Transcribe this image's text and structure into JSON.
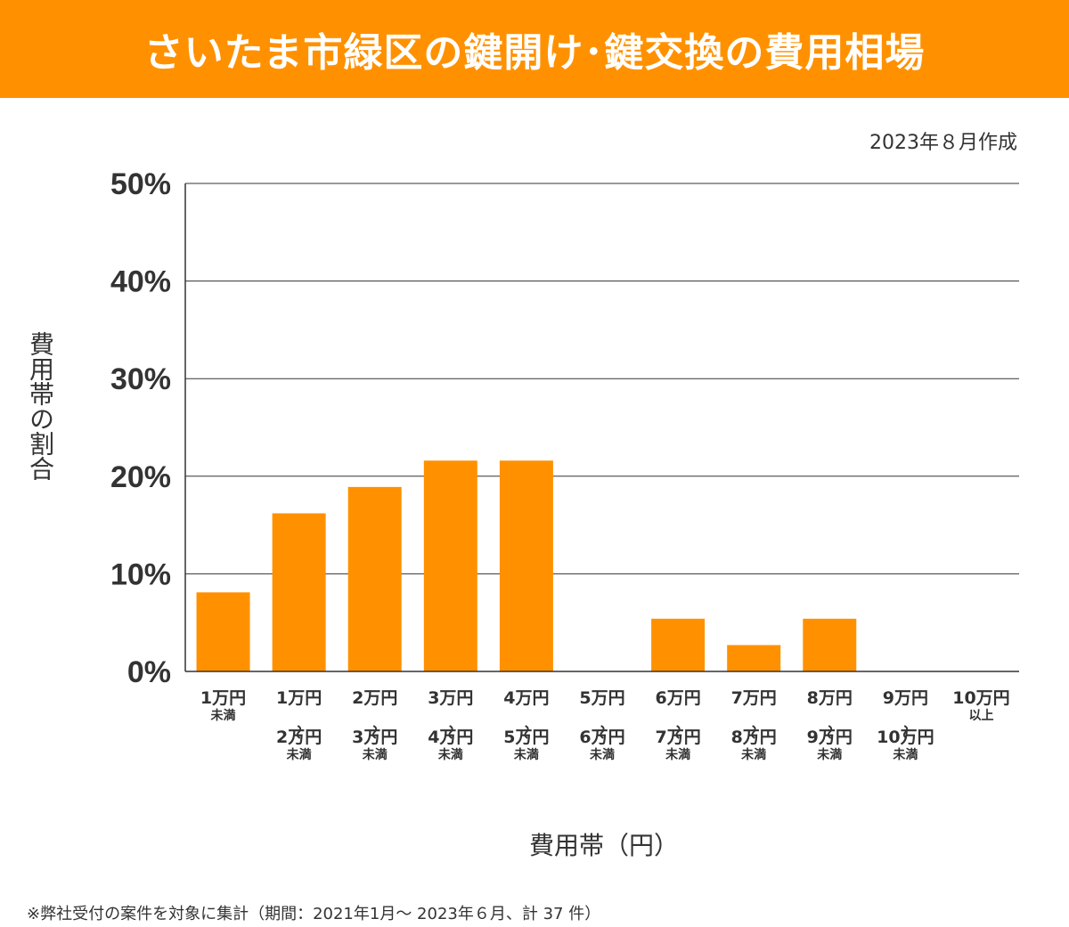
{
  "header": {
    "title": "さいたま市緑区の鍵開け･鍵交換の費用相場",
    "created": "2023年８月作成"
  },
  "footnote": "※弊社受付の案件を対象に集計（期間：2021年1月～ 2023年６月、計 37 件）",
  "colors": {
    "accent": "#ff9100",
    "bar": "#ff9100",
    "grid": "#333333",
    "text": "#333333"
  },
  "chart_data": {
    "type": "bar",
    "ylabel": "費用帯の割合",
    "xlabel": "費用帯（円）",
    "ylim": [
      0,
      50
    ],
    "yticks": [
      "0%",
      "10%",
      "20%",
      "30%",
      "40%",
      "50%"
    ],
    "grid": true,
    "categories": [
      {
        "lines": [
          "1万円",
          "未満"
        ]
      },
      {
        "lines": [
          "1万円",
          "〜",
          "2万円",
          "未満"
        ]
      },
      {
        "lines": [
          "2万円",
          "〜",
          "3万円",
          "未満"
        ]
      },
      {
        "lines": [
          "3万円",
          "〜",
          "4万円",
          "未満"
        ]
      },
      {
        "lines": [
          "4万円",
          "〜",
          "5万円",
          "未満"
        ]
      },
      {
        "lines": [
          "5万円",
          "〜",
          "6万円",
          "未満"
        ]
      },
      {
        "lines": [
          "6万円",
          "〜",
          "7万円",
          "未満"
        ]
      },
      {
        "lines": [
          "7万円",
          "〜",
          "8万円",
          "未満"
        ]
      },
      {
        "lines": [
          "8万円",
          "〜",
          "9万円",
          "未満"
        ]
      },
      {
        "lines": [
          "9万円",
          "〜",
          "10万円",
          "未満"
        ]
      },
      {
        "lines": [
          "10万円",
          "以上"
        ]
      }
    ],
    "values": [
      8.1,
      16.2,
      18.9,
      21.6,
      21.6,
      0,
      5.4,
      2.7,
      5.4,
      0,
      0
    ]
  }
}
